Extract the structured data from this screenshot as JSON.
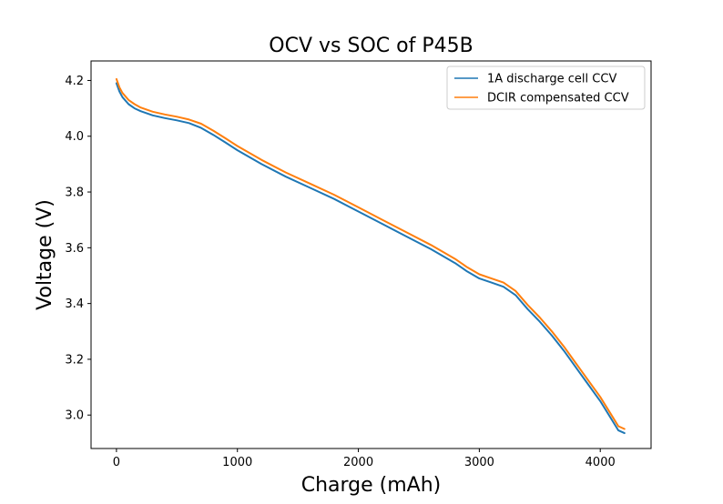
{
  "chart_data": {
    "type": "line",
    "title": "OCV vs SOC of P45B",
    "xlabel": "Charge (mAh)",
    "ylabel": "Voltage (V)",
    "xlim": [
      -210,
      4420
    ],
    "ylim": [
      2.88,
      4.27
    ],
    "xticks": [
      0,
      1000,
      2000,
      3000,
      4000
    ],
    "yticks": [
      3.0,
      3.2,
      3.4,
      3.6,
      3.8,
      4.0,
      4.2
    ],
    "grid": false,
    "legend_position": "upper right",
    "series": [
      {
        "name": "1A discharge cell CCV",
        "color": "#1f77b4",
        "x": [
          0,
          25,
          50,
          100,
          150,
          200,
          300,
          400,
          500,
          600,
          700,
          800,
          900,
          1000,
          1200,
          1400,
          1600,
          1800,
          2000,
          2200,
          2400,
          2600,
          2800,
          2900,
          3000,
          3100,
          3200,
          3300,
          3400,
          3500,
          3600,
          3700,
          3800,
          3900,
          4000,
          4100,
          4150,
          4200
        ],
        "y": [
          4.19,
          4.16,
          4.14,
          4.115,
          4.1,
          4.09,
          4.075,
          4.065,
          4.057,
          4.047,
          4.03,
          4.005,
          3.978,
          3.95,
          3.9,
          3.855,
          3.815,
          3.775,
          3.73,
          3.685,
          3.64,
          3.595,
          3.545,
          3.515,
          3.49,
          3.475,
          3.46,
          3.43,
          3.38,
          3.335,
          3.285,
          3.23,
          3.17,
          3.11,
          3.05,
          2.98,
          2.945,
          2.935
        ]
      },
      {
        "name": "DCIR compensated CCV",
        "color": "#ff7f0e",
        "x": [
          0,
          25,
          50,
          100,
          150,
          200,
          300,
          400,
          500,
          600,
          700,
          800,
          900,
          1000,
          1200,
          1400,
          1600,
          1800,
          2000,
          2200,
          2400,
          2600,
          2800,
          2900,
          3000,
          3100,
          3200,
          3300,
          3400,
          3500,
          3600,
          3700,
          3800,
          3900,
          4000,
          4100,
          4150,
          4200
        ],
        "y": [
          4.205,
          4.175,
          4.155,
          4.13,
          4.115,
          4.103,
          4.088,
          4.078,
          4.07,
          4.06,
          4.045,
          4.02,
          3.993,
          3.965,
          3.915,
          3.87,
          3.83,
          3.79,
          3.745,
          3.7,
          3.655,
          3.61,
          3.56,
          3.53,
          3.505,
          3.49,
          3.475,
          3.445,
          3.395,
          3.35,
          3.3,
          3.245,
          3.185,
          3.125,
          3.065,
          2.995,
          2.96,
          2.95
        ]
      }
    ]
  }
}
